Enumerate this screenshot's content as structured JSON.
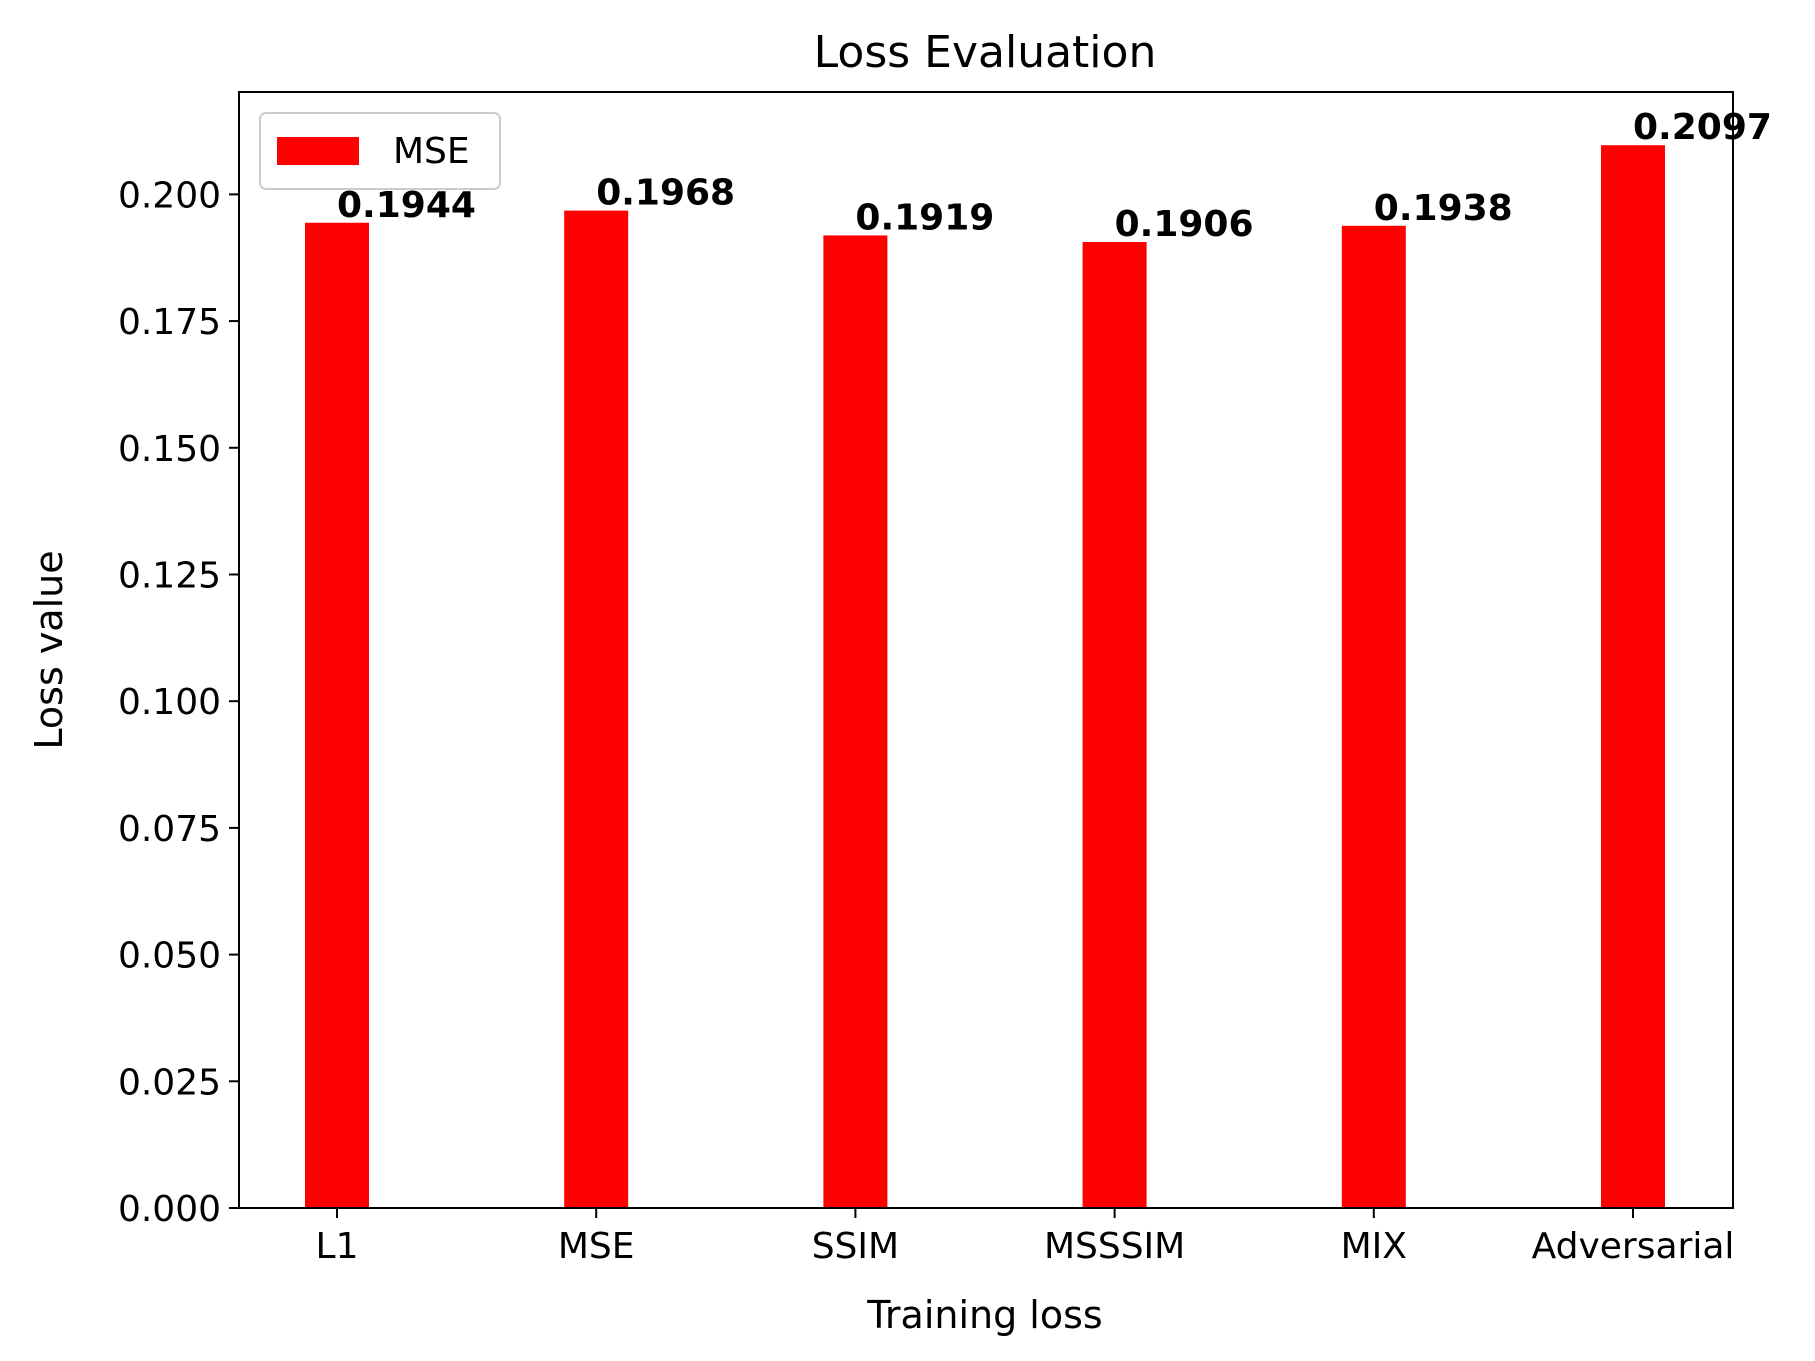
{
  "chart_data": {
    "type": "bar",
    "title": "Loss Evaluation",
    "xlabel": "Training loss",
    "ylabel": "Loss value",
    "categories": [
      "L1",
      "MSE",
      "SSIM",
      "MSSSIM",
      "MIX",
      "Adversarial"
    ],
    "series": [
      {
        "name": "MSE",
        "color": "#ff0000",
        "values": [
          0.1944,
          0.1968,
          0.1919,
          0.1906,
          0.1938,
          0.2097
        ],
        "value_labels": [
          "0.1944",
          "0.1968",
          "0.1919",
          "0.1906",
          "0.1938",
          "0.2097"
        ]
      }
    ],
    "ylim": [
      0,
      0.2202
    ],
    "yticks": [
      0.0,
      0.025,
      0.05,
      0.075,
      0.1,
      0.125,
      0.15,
      0.175,
      0.2
    ],
    "ytick_labels": [
      "0.000",
      "0.025",
      "0.050",
      "0.075",
      "0.100",
      "0.125",
      "0.150",
      "0.175",
      "0.200"
    ],
    "legend_position": "top-left",
    "grid": false
  }
}
